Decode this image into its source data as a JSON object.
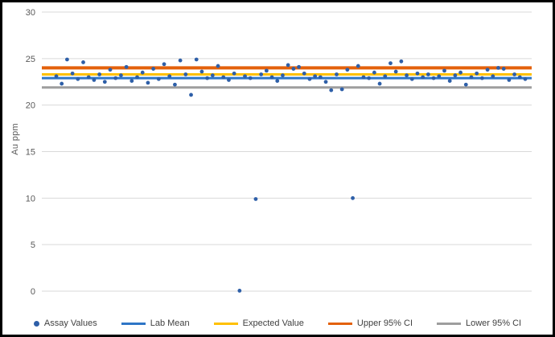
{
  "figure": {
    "background": "#ffffff",
    "border_color": "#000000"
  },
  "chart_data": {
    "type": "scatter",
    "title": "",
    "xlabel": "",
    "ylabel": "Au ppm",
    "ylim": [
      0,
      30
    ],
    "yticks": [
      0,
      5,
      10,
      15,
      20,
      25,
      30
    ],
    "grid": true,
    "gridline_color": "#d9d9d9",
    "x_axis_labels_visible": false,
    "x_description": "sample sequence, evenly spaced, unlabeled",
    "marker_color": "#2e5fa8",
    "values": [
      23.1,
      22.3,
      24.9,
      23.4,
      22.8,
      24.6,
      23.0,
      22.7,
      23.3,
      22.5,
      23.8,
      22.9,
      23.2,
      24.1,
      22.6,
      23.0,
      23.5,
      22.4,
      23.9,
      22.8,
      24.4,
      23.1,
      22.2,
      24.8,
      23.3,
      21.1,
      24.9,
      23.6,
      22.9,
      23.2,
      24.2,
      23.0,
      22.7,
      23.4,
      0.05,
      23.1,
      22.9,
      9.9,
      23.3,
      23.7,
      23.0,
      22.6,
      23.2,
      24.3,
      23.9,
      24.1,
      23.4,
      22.8,
      23.1,
      23.0,
      22.5,
      21.6,
      23.3,
      21.7,
      23.8,
      10.0,
      24.2,
      23.0,
      22.9,
      23.5,
      22.3,
      23.1,
      24.5,
      23.6,
      24.7,
      23.2,
      22.8,
      23.4,
      23.0,
      23.3,
      22.9,
      23.1,
      23.7,
      22.6,
      23.2,
      23.5,
      22.2,
      23.0,
      23.4,
      22.9,
      23.8,
      23.1,
      24.0,
      23.9,
      22.7,
      23.3,
      23.0,
      22.8
    ],
    "reference_lines": [
      {
        "name": "Upper 95% CI",
        "value": 24.0,
        "color": "#e3610b"
      },
      {
        "name": "Expected Value",
        "value": 23.3,
        "color": "#ffc000"
      },
      {
        "name": "Lab Mean",
        "value": 22.9,
        "color": "#2e75c6"
      },
      {
        "name": "Lower 95% CI",
        "value": 21.9,
        "color": "#9e9e9e"
      }
    ],
    "legend_position": "bottom",
    "legend": [
      {
        "label": "Assay Values",
        "marker": "dot",
        "color": "#2e5fa8"
      },
      {
        "label": "Lab Mean",
        "marker": "line",
        "color": "#2e75c6"
      },
      {
        "label": "Expected Value",
        "marker": "line",
        "color": "#ffc000"
      },
      {
        "label": "Upper 95% CI",
        "marker": "line",
        "color": "#e3610b"
      },
      {
        "label": "Lower 95% CI",
        "marker": "line",
        "color": "#9e9e9e"
      }
    ],
    "tick_label_color": "#595959"
  }
}
